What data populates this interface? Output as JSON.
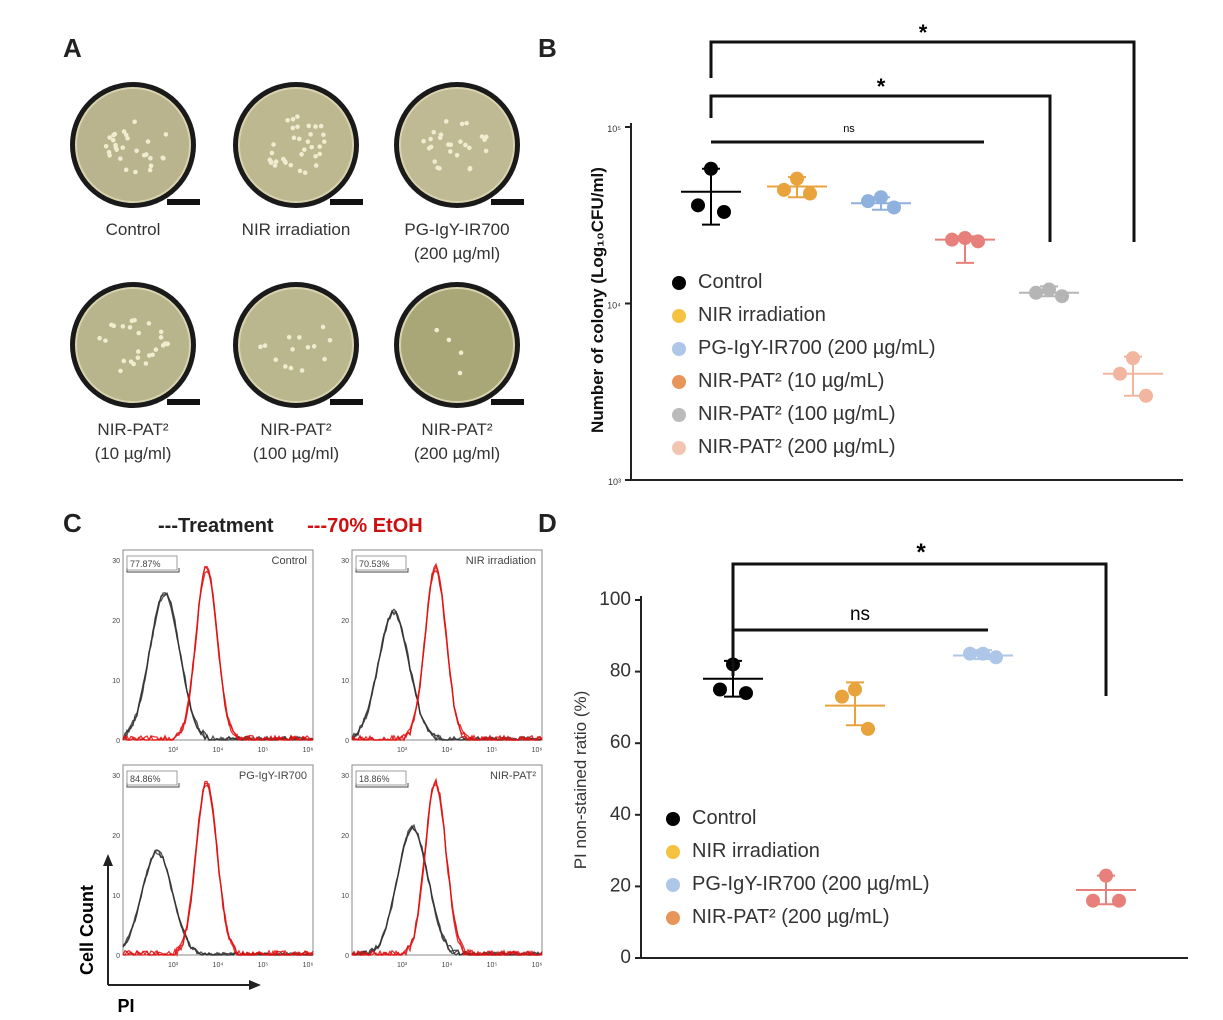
{
  "panels": {
    "A": {
      "letter": "A",
      "plates": [
        {
          "label_line1": "Control",
          "label_line2": "",
          "colonies": 28,
          "tint": "#b9b48e"
        },
        {
          "label_line1": "NIR irradiation",
          "label_line2": "",
          "colonies": 34,
          "tint": "#bdb890"
        },
        {
          "label_line1": "PG-IgY-IR700",
          "label_line2": "(200 µg/ml)",
          "colonies": 26,
          "tint": "#bfb994"
        },
        {
          "label_line1": "NIR-PAT²",
          "label_line2": "(10 µg/ml)",
          "colonies": 26,
          "tint": "#b8b48c"
        },
        {
          "label_line1": "NIR-PAT²",
          "label_line2": "(100 µg/ml)",
          "colonies": 14,
          "tint": "#bab78f"
        },
        {
          "label_line1": "NIR-PAT²",
          "label_line2": "(200 µg/ml)",
          "colonies": 4,
          "tint": "#a9a777"
        }
      ]
    },
    "B": {
      "letter": "B",
      "ylabel": "Number of colony (Log₁₀CFU/ml)",
      "tick_labels": [
        "10⁵",
        "10⁴",
        "10³"
      ],
      "sig_labels": [
        "*",
        "*",
        "ns"
      ],
      "legend": [
        {
          "label": "Control",
          "color": "#000000"
        },
        {
          "label": "NIR irradiation",
          "color": "#f5c242"
        },
        {
          "label": "PG-IgY-IR700 (200 µg/mL)",
          "color": "#aec6e8"
        },
        {
          "label": "NIR-PAT² (10 µg/mL)",
          "color": "#e8955a"
        },
        {
          "label": "NIR-PAT² (100 µg/mL)",
          "color": "#bbbbbb"
        },
        {
          "label": "NIR-PAT² (200 µg/mL)",
          "color": "#f2c5b3"
        }
      ]
    },
    "C": {
      "letter": "C",
      "legend_treatment": "---Treatment",
      "legend_etoh": "---70% EtOH",
      "ylabel": "Cell Count",
      "xlabel": "PI",
      "subplots": [
        {
          "name": "Control",
          "gate_pct": "77.87%"
        },
        {
          "name": "NIR irradiation",
          "gate_pct": "70.53%"
        },
        {
          "name": "PG-IgY-IR700",
          "gate_pct": "84.86%"
        },
        {
          "name": "NIR-PAT²",
          "gate_pct": "18.86%"
        }
      ],
      "tick_labels": [
        "10³",
        "10⁴",
        "10⁵",
        "10⁶"
      ],
      "y_ticks": [
        "0",
        "10",
        "20",
        "30"
      ]
    },
    "D": {
      "letter": "D",
      "ylabel": "PI non-stained ratio (%)",
      "tick_labels": [
        "0",
        "20",
        "40",
        "60",
        "80",
        "100"
      ],
      "sig_labels": [
        "*",
        "ns"
      ],
      "legend": [
        {
          "label": "Control",
          "color": "#000000"
        },
        {
          "label": "NIR irradiation",
          "color": "#f5c242"
        },
        {
          "label": "PG-IgY-IR700 (200 µg/mL)",
          "color": "#aec6e8"
        },
        {
          "label": "NIR-PAT² (200 µg/mL)",
          "color": "#e8955a"
        }
      ]
    }
  },
  "chart_data": [
    {
      "type": "scatter",
      "panel": "B",
      "ylabel": "Number of colony (Log₁₀CFU/ml)",
      "yscale": "log",
      "ylim": [
        1000,
        100000
      ],
      "groups": [
        {
          "name": "Control",
          "color": "#000000",
          "points": [
            58000,
            36000,
            33000
          ],
          "mean": 43000,
          "sd": [
            28000,
            58000
          ]
        },
        {
          "name": "NIR irradiation",
          "color": "#e8a33d",
          "points": [
            51000,
            44000,
            42000
          ],
          "mean": 46000,
          "sd": [
            40000,
            52000
          ]
        },
        {
          "name": "PG-IgY-IR700 (200 µg/mL)",
          "color": "#8fb1dd",
          "points": [
            40000,
            38000,
            35000
          ],
          "mean": 37000,
          "sd": [
            34000,
            40000
          ]
        },
        {
          "name": "NIR-PAT² (10 µg/mL)",
          "color": "#e7807a",
          "points": [
            23500,
            23000,
            22500
          ],
          "mean": 23000,
          "sd": [
            17000,
            24000
          ]
        },
        {
          "name": "NIR-PAT² (100 µg/mL)",
          "color": "#b5b5b5",
          "points": [
            12000,
            11500,
            11000
          ],
          "mean": 11500,
          "sd": [
            11000,
            12500
          ]
        },
        {
          "name": "NIR-PAT² (200 µg/mL)",
          "color": "#f2b5a0",
          "points": [
            4900,
            4000,
            3000
          ],
          "mean": 4000,
          "sd": [
            3000,
            5000
          ]
        }
      ]
    },
    {
      "type": "scatter",
      "panel": "D",
      "ylabel": "PI non-stained ratio (%)",
      "ylim": [
        0,
        100
      ],
      "groups": [
        {
          "name": "Control",
          "color": "#000000",
          "points": [
            82,
            75,
            74
          ],
          "mean": 78,
          "sd": [
            73,
            83
          ]
        },
        {
          "name": "NIR irradiation",
          "color": "#e8a33d",
          "points": [
            75,
            73,
            64
          ],
          "mean": 70.5,
          "sd": [
            65,
            77
          ]
        },
        {
          "name": "PG-IgY-IR700 (200 µg/mL)",
          "color": "#aec6e8",
          "points": [
            85,
            85,
            84
          ],
          "mean": 84.5,
          "sd": [
            83.5,
            86
          ]
        },
        {
          "name": "NIR-PAT² (200 µg/mL)",
          "color": "#e7807a",
          "points": [
            23,
            16,
            16
          ],
          "mean": 19,
          "sd": [
            15,
            23
          ]
        }
      ]
    }
  ]
}
